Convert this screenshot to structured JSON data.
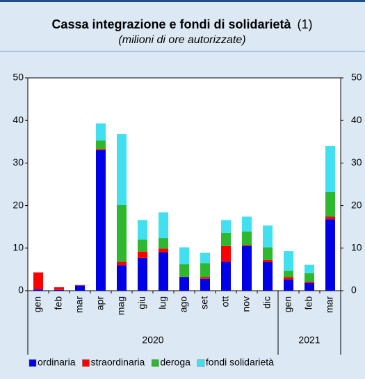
{
  "chart_data": {
    "type": "stacked_bar",
    "title": "Cassa integrazione e fondi di solidarietà",
    "title_note": "(1)",
    "subtitle": "(milioni di ore autorizzate)",
    "categories": [
      "gen",
      "feb",
      "mar",
      "apr",
      "mag",
      "giu",
      "lug",
      "ago",
      "set",
      "ott",
      "nov",
      "dic",
      "gen",
      "feb",
      "mar"
    ],
    "category_groups": [
      {
        "label": "2020",
        "count": 12
      },
      {
        "label": "2021",
        "count": 3
      }
    ],
    "series": [
      {
        "name": "ordinaria",
        "color": "#0000e6",
        "values": [
          0.3,
          0.2,
          1.2,
          33,
          6,
          7.7,
          9,
          3.2,
          2.8,
          6.8,
          10.5,
          6.7,
          2.6,
          1.8,
          16.8
        ]
      },
      {
        "name": "straordinaria",
        "color": "#ff0000",
        "values": [
          4,
          0.6,
          0.1,
          0.3,
          0.8,
          1.5,
          0.9,
          0.1,
          0.4,
          3.7,
          0.2,
          0.5,
          0.6,
          0.3,
          0.6
        ]
      },
      {
        "name": "deroga",
        "color": "#2eb82e",
        "values": [
          0,
          0,
          0,
          2,
          13.3,
          2.8,
          2.5,
          2.9,
          3.3,
          3.1,
          3.2,
          3,
          1.5,
          2,
          5.8
        ]
      },
      {
        "name": "fondi solidarietà",
        "color": "#40e0f0",
        "values": [
          0,
          0,
          0.1,
          4,
          16.7,
          4.6,
          6,
          4,
          2.4,
          3,
          3.5,
          5.1,
          4.6,
          2,
          10.8
        ]
      }
    ],
    "ylim": [
      0,
      50
    ],
    "yticks": [
      0,
      10,
      20,
      30,
      40,
      50
    ],
    "y2lim": [
      0,
      50
    ],
    "y2ticks": [
      0,
      10,
      20,
      30,
      40,
      50
    ],
    "legend": "bottom"
  }
}
